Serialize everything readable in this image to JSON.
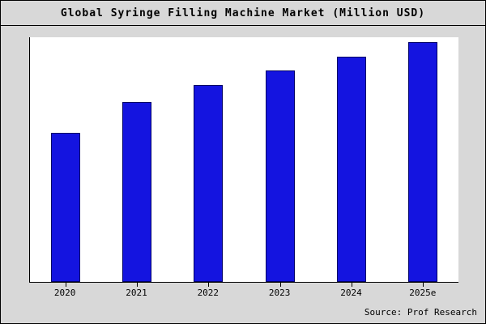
{
  "title": "Global Syringe Filling Machine Market (Million USD)",
  "source": "Source: Prof Research",
  "colors": {
    "bar_fill": "#1414e0",
    "bar_border": "#000066",
    "page_bg": "#d8d8d8",
    "plot_bg": "#ffffff"
  },
  "chart_data": {
    "type": "bar",
    "categories": [
      "2020",
      "2021",
      "2022",
      "2023",
      "2024",
      "2025e"
    ],
    "values": [
      62,
      75,
      82,
      88,
      94,
      100
    ],
    "title": "Global Syringe Filling Machine Market (Million USD)",
    "xlabel": "",
    "ylabel": "",
    "ylim": [
      0,
      102
    ],
    "grid": false,
    "legend": false,
    "source": "Source: Prof Research"
  }
}
